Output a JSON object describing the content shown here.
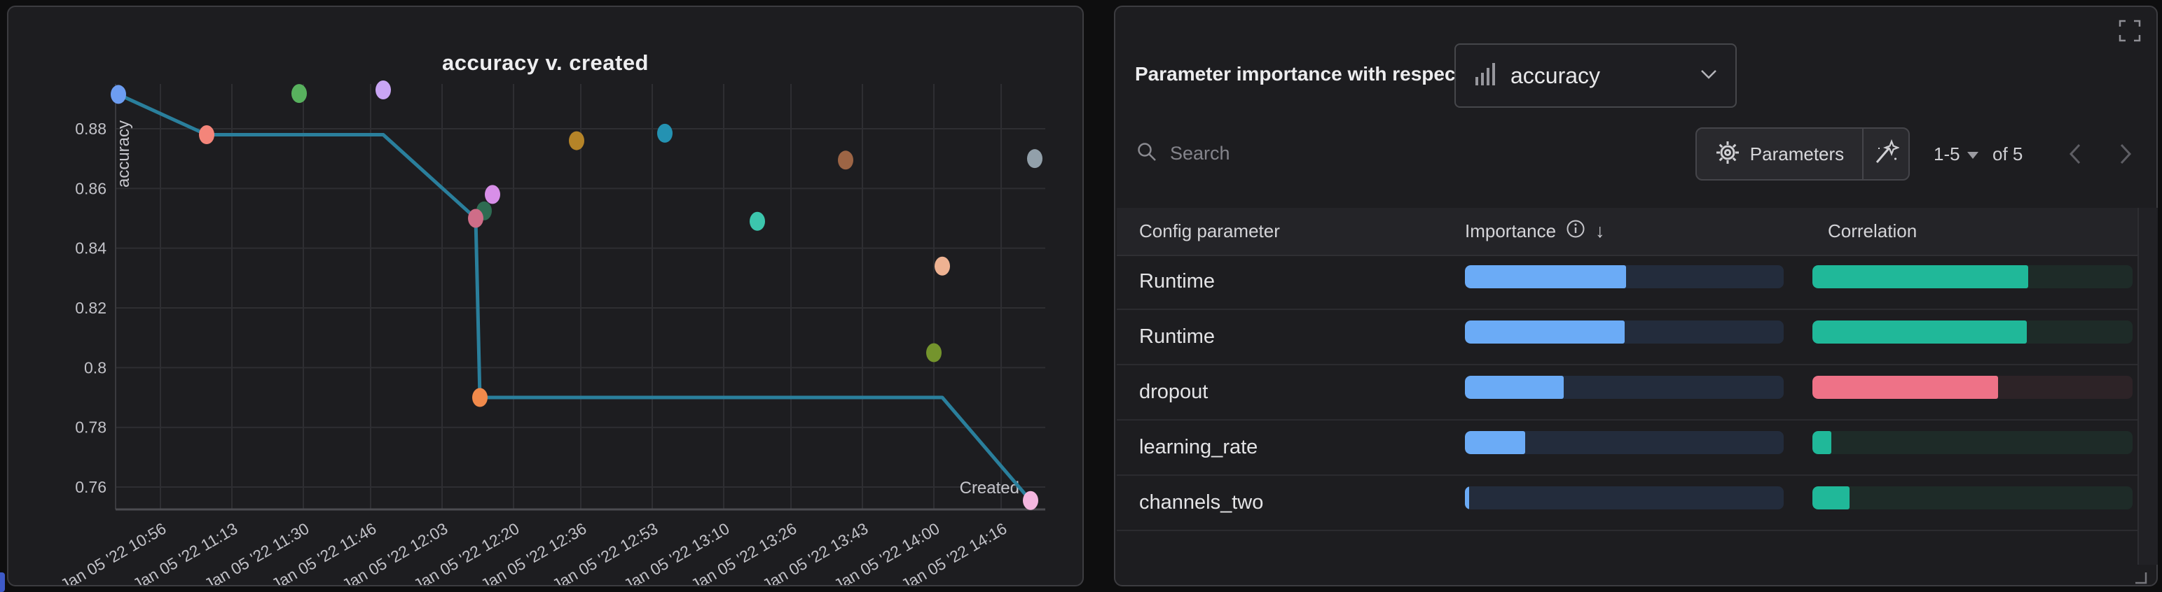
{
  "left_panel": {
    "chart_data": {
      "type": "scatter",
      "title": "accuracy v. created",
      "xlabel": "Created",
      "ylabel": "accuracy",
      "grid": true,
      "x_tick_labels": [
        "Jan 05 '22 10:56",
        "Jan 05 '22 11:13",
        "Jan 05 '22 11:30",
        "Jan 05 '22 11:46",
        "Jan 05 '22 12:03",
        "Jan 05 '22 12:20",
        "Jan 05 '22 12:36",
        "Jan 05 '22 12:53",
        "Jan 05 '22 13:10",
        "Jan 05 '22 13:26",
        "Jan 05 '22 13:43",
        "Jan 05 '22 14:00",
        "Jan 05 '22 14:16"
      ],
      "y_tick_labels": [
        "0.88",
        "0.86",
        "0.84",
        "0.82",
        "0.8",
        "0.78",
        "0.76"
      ],
      "y_ticks": [
        0.88,
        0.86,
        0.84,
        0.82,
        0.8,
        0.78,
        0.76
      ],
      "ylim": [
        0.752,
        0.896
      ],
      "points": [
        {
          "time": "10:46",
          "accuracy": 0.8915,
          "color": "#6d9df1"
        },
        {
          "time": "11:07",
          "accuracy": 0.878,
          "color": "#f4857a"
        },
        {
          "time": "11:29",
          "accuracy": 0.8918,
          "color": "#58b15e"
        },
        {
          "time": "11:49",
          "accuracy": 0.893,
          "color": "#c9a5f4"
        },
        {
          "time": "12:15",
          "accuracy": 0.858,
          "color": "#d88fe8"
        },
        {
          "time": "12:13",
          "accuracy": 0.8525,
          "color": "#2e6b52"
        },
        {
          "time": "12:11",
          "accuracy": 0.85,
          "color": "#cf6d88"
        },
        {
          "time": "12:12",
          "accuracy": 0.79,
          "color": "#f18a4b"
        },
        {
          "time": "12:35",
          "accuracy": 0.876,
          "color": "#b58428"
        },
        {
          "time": "12:56",
          "accuracy": 0.8785,
          "color": "#2492b2"
        },
        {
          "time": "13:18",
          "accuracy": 0.849,
          "color": "#3cc6ad"
        },
        {
          "time": "13:39",
          "accuracy": 0.8695,
          "color": "#9d6545"
        },
        {
          "time": "14:02",
          "accuracy": 0.834,
          "color": "#eeb292"
        },
        {
          "time": "14:00",
          "accuracy": 0.805,
          "color": "#74942d"
        },
        {
          "time": "14:24",
          "accuracy": 0.87,
          "color": "#92a0aa"
        },
        {
          "time": "14:23",
          "accuracy": 0.7555,
          "color": "#f4b6df"
        }
      ],
      "best_line": {
        "color": "#2a7f9c",
        "points": [
          [
            "10:46",
            0.8915
          ],
          [
            "11:07",
            0.878
          ],
          [
            "11:49",
            0.878
          ],
          [
            "12:11",
            0.85
          ],
          [
            "12:12",
            0.79
          ],
          [
            "14:02",
            0.79
          ],
          [
            "14:23",
            0.7555
          ]
        ]
      }
    }
  },
  "right_panel": {
    "header": {
      "label": "Parameter importance with respect to",
      "metric": "accuracy",
      "metric_icon": "bar-chart-icon"
    },
    "toolbar": {
      "search_placeholder": "Search",
      "parameters_label": "Parameters",
      "parameters_icon": "gear-icon",
      "magic_icon": "magic-wand-icon"
    },
    "pagination": {
      "range": "1-5",
      "of": "of 5"
    },
    "table": {
      "columns": [
        "Config parameter",
        "Importance",
        "Correlation"
      ],
      "sort": {
        "column": "Importance",
        "direction": "desc"
      },
      "rows": [
        {
          "parameter": "Runtime",
          "importance": 0.505,
          "correlation": 0.675,
          "correlation_color": "#20b899"
        },
        {
          "parameter": "Runtime",
          "importance": 0.5,
          "correlation": 0.67,
          "correlation_color": "#20b899"
        },
        {
          "parameter": "dropout",
          "importance": 0.31,
          "correlation": 0.58,
          "correlation_color": "#ee7287"
        },
        {
          "parameter": "learning_rate",
          "importance": 0.19,
          "correlation": 0.06,
          "correlation_color": "#20b899"
        },
        {
          "parameter": "channels_two",
          "importance": 0.013,
          "correlation": 0.115,
          "correlation_color": "#20b899"
        }
      ]
    },
    "colors": {
      "importance_fill": "#6babf6",
      "importance_track": "#232c3c",
      "teal_track": "#1e2b28",
      "pink_track": "#2d2327"
    }
  }
}
